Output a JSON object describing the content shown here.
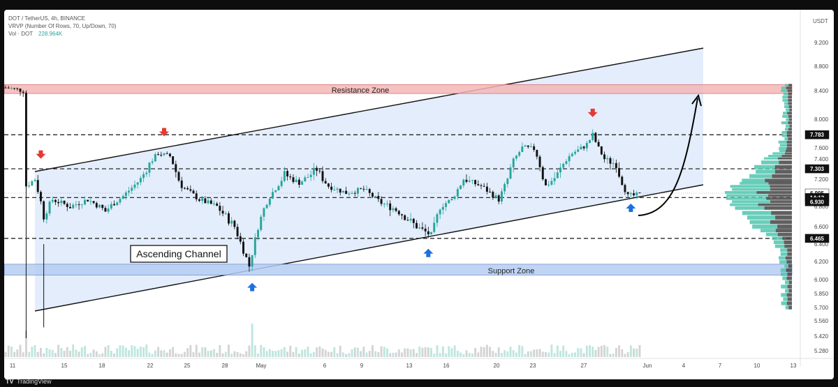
{
  "header": {
    "symbol": "DOT / TetherUS, 4h, BINANCE",
    "indicator": "VRVP (Number Of Rows, 70, Up/Down, 70)",
    "vol_label": "Vol · DOT",
    "vol_value": "228.964K",
    "currency": "USDT"
  },
  "footer": {
    "brand": "TradingView"
  },
  "annotations": {
    "resistance": "Resistance Zone",
    "support": "Support Zone",
    "channel": "Ascending Channel"
  },
  "colors": {
    "up": "#26a69a",
    "down": "#111111",
    "channel_fill": "#dce8fb",
    "resistance": "#f4b6b6",
    "support": "#b5cdf2",
    "arrow_down": "#e53935",
    "arrow_up": "#1e6fe0",
    "profile_up": "#4fc6ae",
    "profile_down": "#444444"
  },
  "chart_data": {
    "type": "candlestick",
    "ylim": [
      5.2,
      9.4
    ],
    "y_ticks": [
      "9.200",
      "8.800",
      "8.400",
      "8.000",
      "7.600",
      "7.400",
      "7.200",
      "6.800",
      "6.600",
      "6.400",
      "6.200",
      "6.000",
      "5.850",
      "5.700",
      "5.560",
      "5.420",
      "5.280"
    ],
    "x_ticks": [
      "11",
      "15",
      "18",
      "22",
      "25",
      "28",
      "May",
      "6",
      "9",
      "13",
      "16",
      "20",
      "23",
      "27",
      "Jun",
      "4",
      "7",
      "10",
      "13"
    ],
    "price_tags": [
      {
        "label": "7.783",
        "style": "dark"
      },
      {
        "label": "7.303",
        "style": "dark"
      },
      {
        "label": "6.995",
        "style": "light"
      },
      {
        "label": "14:13",
        "style": "dark"
      },
      {
        "label": "6.930",
        "style": "dark"
      },
      {
        "label": "6.465",
        "style": "dark"
      }
    ],
    "levels": [
      7.783,
      7.303,
      6.93,
      6.465
    ],
    "resistance_zone": [
      8.36,
      8.5
    ],
    "support_zone": [
      6.05,
      6.17
    ],
    "price_path": [
      {
        "i": 0,
        "p": 8.45
      },
      {
        "i": 4,
        "p": 8.42
      },
      {
        "i": 6,
        "p": 8.4
      },
      {
        "i": 7,
        "p": 7.1
      },
      {
        "i": 10,
        "p": 7.2
      },
      {
        "i": 13,
        "p": 6.7
      },
      {
        "i": 16,
        "p": 6.9
      },
      {
        "i": 22,
        "p": 6.8
      },
      {
        "i": 28,
        "p": 6.9
      },
      {
        "i": 34,
        "p": 6.75
      },
      {
        "i": 40,
        "p": 6.95
      },
      {
        "i": 46,
        "p": 7.2
      },
      {
        "i": 52,
        "p": 7.5
      },
      {
        "i": 56,
        "p": 7.45
      },
      {
        "i": 60,
        "p": 7.1
      },
      {
        "i": 66,
        "p": 6.9
      },
      {
        "i": 72,
        "p": 6.8
      },
      {
        "i": 78,
        "p": 6.6
      },
      {
        "i": 83,
        "p": 6.15
      },
      {
        "i": 86,
        "p": 6.6
      },
      {
        "i": 90,
        "p": 6.95
      },
      {
        "i": 95,
        "p": 7.25
      },
      {
        "i": 100,
        "p": 7.15
      },
      {
        "i": 106,
        "p": 7.3
      },
      {
        "i": 110,
        "p": 7.1
      },
      {
        "i": 116,
        "p": 7.0
      },
      {
        "i": 122,
        "p": 7.05
      },
      {
        "i": 128,
        "p": 6.85
      },
      {
        "i": 134,
        "p": 6.75
      },
      {
        "i": 140,
        "p": 6.6
      },
      {
        "i": 145,
        "p": 6.5
      },
      {
        "i": 148,
        "p": 6.8
      },
      {
        "i": 152,
        "p": 6.9
      },
      {
        "i": 156,
        "p": 7.2
      },
      {
        "i": 162,
        "p": 7.1
      },
      {
        "i": 168,
        "p": 6.9
      },
      {
        "i": 172,
        "p": 7.3
      },
      {
        "i": 176,
        "p": 7.6
      },
      {
        "i": 180,
        "p": 7.58
      },
      {
        "i": 184,
        "p": 7.1
      },
      {
        "i": 188,
        "p": 7.25
      },
      {
        "i": 193,
        "p": 7.5
      },
      {
        "i": 198,
        "p": 7.65
      },
      {
        "i": 200,
        "p": 7.78
      },
      {
        "i": 204,
        "p": 7.4
      },
      {
        "i": 208,
        "p": 7.35
      },
      {
        "i": 212,
        "p": 6.95
      },
      {
        "i": 216,
        "p": 6.97
      }
    ],
    "total_candles": 217,
    "arrows": [
      {
        "dir": "down",
        "i": 12,
        "p": 7.43
      },
      {
        "dir": "down",
        "i": 54,
        "p": 7.78
      },
      {
        "dir": "down",
        "i": 200,
        "p": 8.05
      },
      {
        "dir": "up",
        "i": 84,
        "p": 5.95
      },
      {
        "dir": "up",
        "i": 144,
        "p": 6.33
      },
      {
        "dir": "up",
        "i": 213,
        "p": 6.82
      }
    ]
  }
}
